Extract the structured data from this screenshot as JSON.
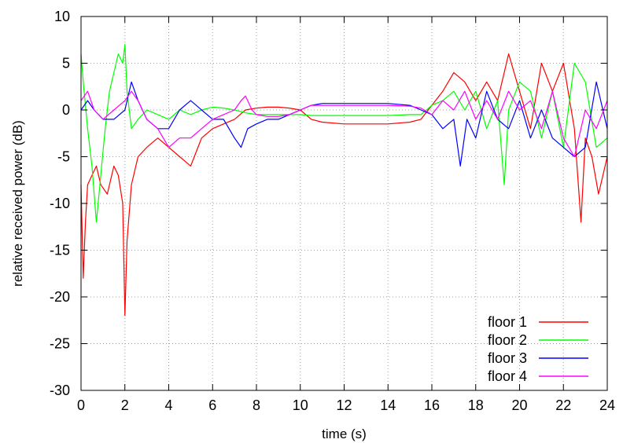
{
  "chart_data": {
    "type": "line",
    "title": "",
    "xlabel": "time (s)",
    "ylabel": "relative received power (dB)",
    "xlim": [
      0,
      24
    ],
    "ylim": [
      -30,
      10
    ],
    "xticks": [
      0,
      2,
      4,
      6,
      8,
      10,
      12,
      14,
      16,
      18,
      20,
      22,
      24
    ],
    "yticks": [
      10,
      5,
      0,
      -5,
      -10,
      -15,
      -20,
      -25,
      -30
    ],
    "grid": true,
    "grid_style": "dotted",
    "legend_position": "bottom-right",
    "series": [
      {
        "name": "floor 1",
        "color": "#ff0000",
        "x": [
          0,
          0.1,
          0.2,
          0.3,
          0.5,
          0.7,
          0.9,
          1.2,
          1.5,
          1.7,
          1.9,
          2.0,
          2.1,
          2.3,
          2.6,
          3.0,
          3.5,
          4.0,
          4.5,
          5.0,
          5.5,
          6.0,
          6.5,
          7.0,
          7.5,
          8.0,
          8.5,
          9.0,
          9.5,
          10.0,
          10.5,
          11.0,
          12.0,
          13.0,
          14.0,
          15.0,
          15.5,
          16.0,
          16.5,
          17.0,
          17.5,
          18.0,
          18.5,
          19.0,
          19.5,
          20.0,
          20.5,
          21.0,
          21.5,
          22.0,
          22.5,
          22.8,
          23.0,
          23.3,
          23.6,
          24.0
        ],
        "y": [
          -8,
          -18,
          -12,
          -8,
          -7,
          -6,
          -8,
          -9,
          -6,
          -7,
          -10,
          -22,
          -14,
          -8,
          -5,
          -4,
          -3,
          -4,
          -5,
          -6,
          -3,
          -2,
          -1.5,
          -1,
          0,
          0.2,
          0.3,
          0.3,
          0.2,
          0,
          -1,
          -1.3,
          -1.5,
          -1.5,
          -1.5,
          -1.3,
          -1,
          0.5,
          2,
          4,
          3,
          1,
          3,
          1,
          6,
          2,
          -2,
          5,
          2,
          5,
          -2,
          -12,
          -3,
          -5,
          -9,
          -5
        ]
      },
      {
        "name": "floor 2",
        "color": "#00ff00",
        "x": [
          0,
          0.1,
          0.3,
          0.5,
          0.7,
          0.9,
          1.1,
          1.3,
          1.5,
          1.7,
          1.9,
          2.0,
          2.1,
          2.3,
          2.6,
          3.0,
          3.5,
          4.0,
          4.5,
          5.0,
          5.5,
          6.0,
          6.5,
          7.0,
          7.5,
          8.0,
          8.5,
          9.0,
          9.5,
          10.0,
          10.5,
          11.0,
          12.0,
          13.0,
          14.0,
          15.0,
          15.5,
          16.0,
          16.5,
          17.0,
          17.5,
          18.0,
          18.5,
          19.0,
          19.3,
          19.5,
          20.0,
          20.5,
          21.0,
          21.5,
          22.0,
          22.5,
          23.0,
          23.5,
          24.0
        ],
        "y": [
          6,
          3,
          -2,
          -6,
          -12,
          -7,
          -2,
          2,
          4,
          6,
          5,
          7,
          2,
          -2,
          -1,
          0,
          -0.5,
          -1,
          0,
          -0.5,
          0,
          0.3,
          0.2,
          0,
          -0.3,
          -0.5,
          -0.5,
          -0.5,
          -0.5,
          -0.5,
          -0.6,
          -0.6,
          -0.6,
          -0.6,
          -0.6,
          -0.5,
          -0.5,
          0.5,
          1,
          2,
          0,
          2,
          -2,
          1,
          -8,
          0,
          3,
          2,
          -3,
          2,
          -4,
          5,
          3,
          -4,
          -3
        ]
      },
      {
        "name": "floor 3",
        "color": "#0000ff",
        "x": [
          0,
          0.3,
          0.6,
          1.0,
          1.5,
          2.0,
          2.3,
          2.6,
          3.0,
          3.5,
          4.0,
          4.5,
          5.0,
          5.5,
          6.0,
          6.5,
          7.0,
          7.3,
          7.6,
          8.0,
          8.5,
          9.0,
          9.5,
          10.0,
          10.5,
          11.0,
          12.0,
          13.0,
          14.0,
          15.0,
          15.5,
          16.0,
          16.5,
          17.0,
          17.3,
          17.6,
          18.0,
          18.5,
          19.0,
          19.5,
          20.0,
          20.5,
          21.0,
          21.5,
          22.0,
          22.5,
          23.0,
          23.5,
          24.0
        ],
        "y": [
          0,
          1,
          0,
          -1,
          -1,
          0,
          3,
          1,
          -1,
          -2,
          -2,
          0,
          1,
          0,
          -1,
          -1,
          -3,
          -4,
          -2,
          -1.5,
          -1,
          -1,
          -0.5,
          0,
          0.5,
          0.7,
          0.7,
          0.7,
          0.7,
          0.5,
          0,
          -0.5,
          -2,
          -1,
          -6,
          -1,
          -3,
          2,
          -1,
          -2,
          1,
          -3,
          0,
          -3,
          -4,
          -5,
          -4,
          3,
          -2
        ]
      },
      {
        "name": "floor 4",
        "color": "#ff00ff",
        "x": [
          0,
          0.3,
          0.6,
          1.0,
          1.5,
          2.0,
          2.3,
          2.6,
          3.0,
          3.5,
          4.0,
          4.5,
          5.0,
          5.5,
          6.0,
          6.5,
          7.0,
          7.3,
          7.5,
          7.8,
          8.0,
          8.5,
          9.0,
          9.5,
          10.0,
          10.5,
          11.0,
          12.0,
          13.0,
          14.0,
          15.0,
          15.5,
          16.0,
          16.5,
          17.0,
          17.5,
          18.0,
          18.5,
          19.0,
          19.5,
          20.0,
          20.5,
          21.0,
          21.5,
          22.0,
          22.5,
          23.0,
          23.5,
          24.0
        ],
        "y": [
          1,
          2,
          0,
          -1,
          0,
          1,
          2,
          1,
          -1,
          -2,
          -4,
          -3,
          -3,
          -2,
          -1,
          -0.5,
          0,
          1,
          1.5,
          0,
          -0.5,
          -0.7,
          -0.7,
          -0.5,
          0,
          0.5,
          0.5,
          0.5,
          0.5,
          0.5,
          0.4,
          0.2,
          -0.5,
          1,
          0,
          2,
          -1,
          1,
          -1,
          2,
          0,
          1,
          -2,
          2,
          -3,
          -5,
          0,
          -2,
          1
        ]
      }
    ]
  }
}
